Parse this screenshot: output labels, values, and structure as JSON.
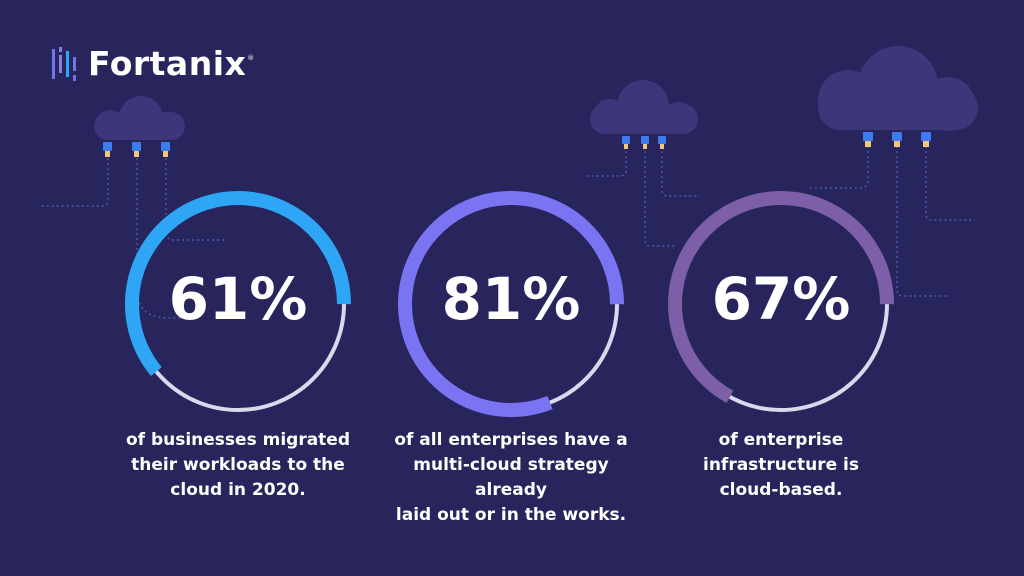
{
  "brand": {
    "name": "Fortanix",
    "registered_mark": "®"
  },
  "colors": {
    "background": "#28245c",
    "cloud": "#3b377a",
    "track": "#d9d8ec",
    "connector_line": "#4a66c9",
    "plug": "#3d7bf0",
    "plug_tip": "#f2c779"
  },
  "stats": [
    {
      "value": 61,
      "label": "61%",
      "caption_lines": [
        "of businesses migrated",
        "their workloads to the",
        "cloud in 2020."
      ],
      "color": "#2ea6f5"
    },
    {
      "value": 81,
      "label": "81%",
      "caption_lines": [
        "of all enterprises have a",
        "multi-cloud strategy already",
        "laid out or in the works."
      ],
      "color": "#7a74f2"
    },
    {
      "value": 67,
      "label": "67%",
      "caption_lines": [
        "of enterprise",
        "infrastructure is",
        "cloud-based."
      ],
      "color": "#7c5fa6"
    }
  ]
}
